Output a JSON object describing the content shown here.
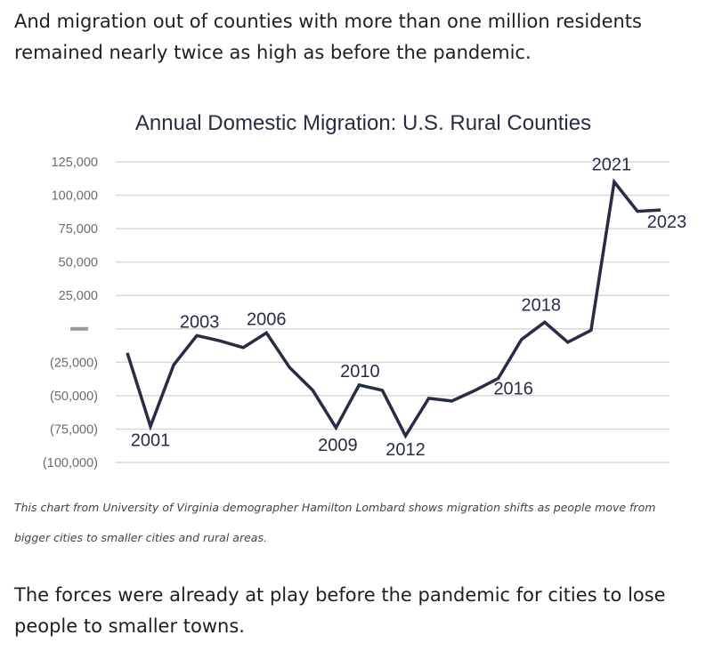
{
  "article": {
    "paragraph_top": "And migration out of counties with more than one million residents remained nearly twice as high as before the pandemic.",
    "caption": "This chart from University of Virginia demographer Hamilton Lombard shows migration shifts as people move from bigger cities to smaller cities and rural areas.",
    "paragraph_bottom": "The forces were already at play before the pandemic for cities to lose people to smaller towns."
  },
  "colors": {
    "line": "#272d45",
    "grid": "#d9d9d9",
    "tick_text": "#6b6b6b",
    "label_text": "#272d45",
    "zero_dash": "#9a9a9a"
  },
  "chart_data": {
    "type": "line",
    "title": "Annual Domestic Migration: U.S. Rural Counties",
    "xlabel": "",
    "ylabel": "",
    "ylim": [
      -100000,
      125000
    ],
    "grid": true,
    "y_ticks": [
      {
        "value": 125000,
        "label": "125,000"
      },
      {
        "value": 100000,
        "label": "100,000"
      },
      {
        "value": 75000,
        "label": "75,000"
      },
      {
        "value": 50000,
        "label": "50,000"
      },
      {
        "value": 25000,
        "label": "25,000"
      },
      {
        "value": 0,
        "label": "-"
      },
      {
        "value": -25000,
        "label": "(25,000)"
      },
      {
        "value": -50000,
        "label": "(50,000)"
      },
      {
        "value": -75000,
        "label": "(75,000)"
      },
      {
        "value": -100000,
        "label": "(100,000)"
      }
    ],
    "series": [
      {
        "name": "Annual Domestic Migration",
        "x": [
          2000,
          2001,
          2002,
          2003,
          2004,
          2005,
          2006,
          2007,
          2008,
          2009,
          2010,
          2011,
          2012,
          2013,
          2014,
          2015,
          2016,
          2017,
          2018,
          2019,
          2020,
          2021,
          2022,
          2023
        ],
        "values": [
          -18000,
          -73000,
          -27000,
          -5000,
          -9000,
          -14000,
          -3000,
          -29000,
          -46000,
          -74000,
          -42000,
          -46000,
          -80000,
          -52000,
          -54000,
          -46000,
          -37000,
          -8000,
          5000,
          -10000,
          -1000,
          110000,
          88000,
          89000
        ]
      }
    ],
    "annotations": [
      {
        "year": 2001,
        "label": "2001"
      },
      {
        "year": 2003,
        "label": "2003"
      },
      {
        "year": 2006,
        "label": "2006"
      },
      {
        "year": 2009,
        "label": "2009"
      },
      {
        "year": 2010,
        "label": "2010"
      },
      {
        "year": 2012,
        "label": "2012"
      },
      {
        "year": 2016,
        "label": "2016"
      },
      {
        "year": 2018,
        "label": "2018"
      },
      {
        "year": 2021,
        "label": "2021"
      },
      {
        "year": 2023,
        "label": "2023"
      }
    ]
  }
}
